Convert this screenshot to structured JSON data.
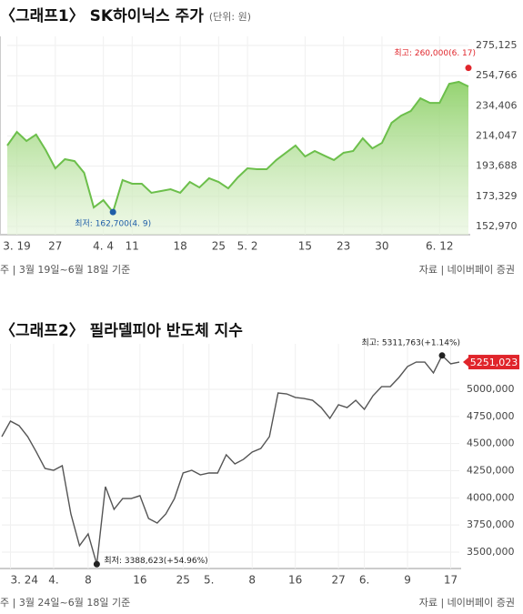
{
  "chart_data": [
    {
      "type": "area",
      "title": "〈그래프1〉 SK하이닉스 주가",
      "subtitle": "(단위: 원)",
      "categories": [
        null,
        "3. 19",
        null,
        null,
        null,
        "27",
        null,
        null,
        null,
        null,
        "4. 4",
        null,
        null,
        "11",
        null,
        null,
        null,
        null,
        "18",
        null,
        null,
        null,
        "25",
        null,
        null,
        "5. 2",
        null,
        null,
        null,
        null,
        null,
        "15",
        null,
        null,
        null,
        "23",
        null,
        null,
        null,
        "30",
        null,
        null,
        null,
        null,
        null,
        "6. 12",
        null,
        null,
        null
      ],
      "values": [
        207600,
        216800,
        210700,
        215000,
        204500,
        192200,
        198400,
        197100,
        189200,
        165800,
        170700,
        162700,
        184300,
        181800,
        181800,
        175700,
        176900,
        178100,
        175700,
        183000,
        179300,
        185500,
        183000,
        178700,
        186100,
        192200,
        191600,
        191600,
        197800,
        202700,
        207600,
        200200,
        203900,
        200800,
        197800,
        202700,
        203900,
        212500,
        205700,
        209400,
        222900,
        227800,
        230900,
        239500,
        236400,
        236400,
        249300,
        250600,
        247500
      ],
      "color": "#6cbf4b",
      "ylim": [
        147400,
        281300
      ],
      "yticks": [
        {
          "value": 275125,
          "label": "275,125"
        },
        {
          "value": 254766,
          "label": "254,766"
        },
        {
          "value": 234406,
          "label": "234,406"
        },
        {
          "value": 214047,
          "label": "214,047"
        },
        {
          "value": 193688,
          "label": "193,688"
        },
        {
          "value": 173329,
          "label": "173,329"
        },
        {
          "value": 152970,
          "label": "152,970"
        }
      ],
      "grid": true,
      "high": {
        "text": "최고: 260,000(6. 17)",
        "value": 260000,
        "color": "#e0252b"
      },
      "low": {
        "text": "최저: 162,700(4. 9)",
        "value": 162700,
        "color": "#1f5ea8"
      },
      "note": "주 | 3월 19일~6월 18일 기준",
      "source": "자료 | 네이버페이 증권"
    },
    {
      "type": "line",
      "title": "〈그래프2〉 필라델피아 반도체 지수",
      "categories": [
        null,
        "3. 24",
        null,
        null,
        null,
        null,
        "4.",
        null,
        null,
        null,
        "8",
        null,
        null,
        null,
        null,
        null,
        "16",
        null,
        null,
        null,
        null,
        "25",
        null,
        null,
        "5.",
        null,
        null,
        null,
        null,
        "8",
        null,
        null,
        null,
        null,
        "16",
        null,
        null,
        null,
        null,
        "27",
        null,
        null,
        "6.",
        null,
        null,
        null,
        null,
        "9",
        null,
        null,
        null,
        null,
        "17",
        null
      ],
      "values": [
        4564000,
        4707000,
        4665000,
        4564000,
        4422000,
        4271000,
        4254000,
        4296000,
        3852000,
        3559000,
        3668000,
        3388623,
        4103000,
        3894000,
        3994000,
        3994000,
        4020000,
        3810000,
        3768000,
        3852000,
        3994000,
        4229000,
        4254000,
        4212000,
        4229000,
        4229000,
        4397000,
        4313000,
        4355000,
        4422000,
        4455000,
        4564000,
        4966000,
        4958000,
        4925000,
        4916000,
        4899000,
        4832000,
        4732000,
        4858000,
        4832000,
        4899000,
        4816000,
        4941000,
        5025000,
        5025000,
        5109000,
        5210000,
        5251000,
        5251000,
        5151000,
        5311763,
        5235000,
        5251023
      ],
      "color": "#555555",
      "ylim": [
        3349000,
        5419000
      ],
      "yticks": [
        {
          "value": 5000000,
          "label": "5000,000"
        },
        {
          "value": 4750000,
          "label": "4750,000"
        },
        {
          "value": 4500000,
          "label": "4500,000"
        },
        {
          "value": 4250000,
          "label": "4250,000"
        },
        {
          "value": 4000000,
          "label": "4000,000"
        },
        {
          "value": 3750000,
          "label": "3750,000"
        },
        {
          "value": 3500000,
          "label": "3500,000"
        }
      ],
      "grid": true,
      "high": {
        "text": "최고: 5311,763(+1.14%)",
        "value": 5311763,
        "color": "#222222"
      },
      "low": {
        "text": "최저: 3388,623(+54.96%)",
        "value": 3388623,
        "color": "#222222"
      },
      "current": {
        "value": 5251023,
        "label": "5251,023",
        "color": "#e0252b"
      },
      "note": "주 | 3월 24일~6월 18일 기준",
      "source": "자료 | 네이버페이 증권"
    }
  ]
}
